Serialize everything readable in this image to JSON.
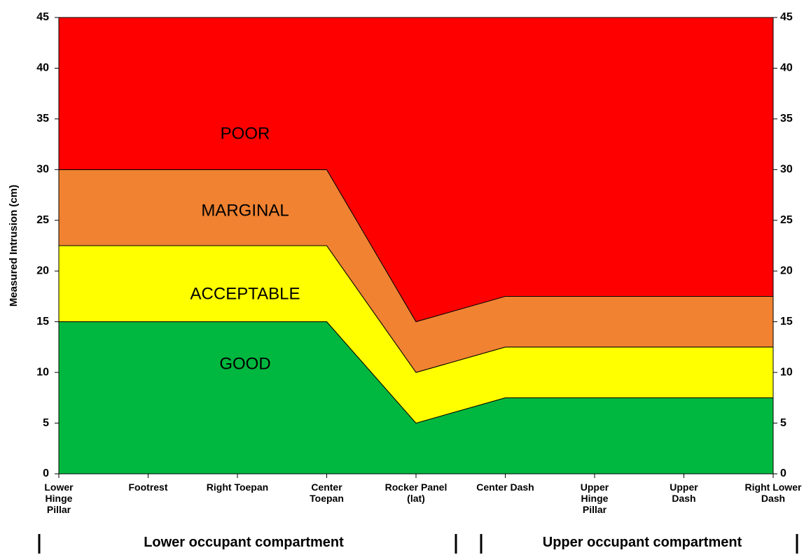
{
  "chart_data": {
    "type": "stacked_area",
    "ylabel": "Measured Intrusion (cm)",
    "categories": [
      "Lower Hinge Pillar",
      "Footrest",
      "Right Toepan",
      "Center Toepan",
      "Rocker Panel (lat)",
      "Center Dash",
      "Upper Hinge Pillar",
      "Upper Dash",
      "Right Lower Dash"
    ],
    "series": [
      {
        "name": "GOOD",
        "color": "#00b83f",
        "values": [
          15,
          15,
          15,
          15,
          5,
          7.5,
          7.5,
          7.5,
          7.5
        ]
      },
      {
        "name": "ACCEPTABLE",
        "color": "#ffff00",
        "values": [
          7.5,
          7.5,
          7.5,
          7.5,
          5,
          5,
          5,
          5,
          5
        ]
      },
      {
        "name": "MARGINAL",
        "color": "#f08232",
        "values": [
          7.5,
          7.5,
          7.5,
          7.5,
          5,
          5,
          5,
          5,
          5
        ]
      },
      {
        "name": "POOR",
        "color": "#ff0000",
        "values": [
          15,
          15,
          15,
          15,
          30,
          27.5,
          27.5,
          27.5,
          27.5
        ]
      }
    ],
    "ylim": [
      0,
      45
    ],
    "yticks": [
      0,
      5,
      10,
      15,
      20,
      25,
      30,
      35,
      40,
      45
    ],
    "y2lim": [
      0,
      45
    ],
    "y2ticks": [
      0,
      5,
      10,
      15,
      20,
      25,
      30,
      35,
      40,
      45
    ],
    "groups": [
      "Lower occupant compartment",
      "Upper occupant compartment"
    ]
  }
}
